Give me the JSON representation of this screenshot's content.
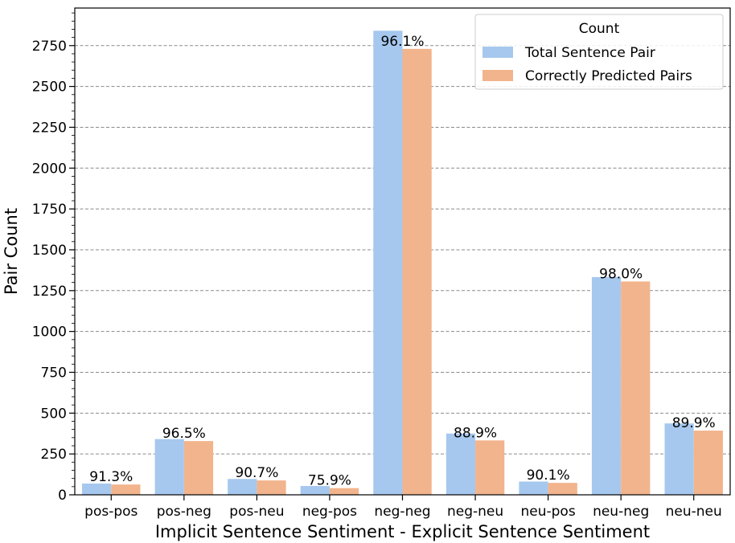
{
  "chart_data": {
    "type": "bar",
    "title": "",
    "xlabel": "Implicit Sentence Sentiment - Explicit Sentence Sentiment",
    "ylabel": "Pair Count",
    "ylim": [
      0,
      2980
    ],
    "yticks": [
      0,
      250,
      500,
      750,
      1000,
      1250,
      1500,
      1750,
      2000,
      2250,
      2500,
      2750
    ],
    "minor_tick_step": 50,
    "grid": true,
    "categories": [
      "pos-pos",
      "pos-neg",
      "pos-neu",
      "neg-pos",
      "neg-neg",
      "neg-neu",
      "neu-pos",
      "neu-neg",
      "neu-neu"
    ],
    "series": [
      {
        "name": "Total Sentence Pair",
        "color": "#a6c8ee",
        "values": [
          69,
          341,
          97,
          54,
          2841,
          375,
          81,
          1333,
          437
        ]
      },
      {
        "name": "Correctly Predicted Pairs",
        "color": "#f2b48c",
        "values": [
          63,
          329,
          88,
          41,
          2730,
          333,
          73,
          1306,
          393
        ]
      }
    ],
    "bar_labels": [
      "91.3%",
      "96.5%",
      "90.7%",
      "75.9%",
      "96.1%",
      "88.9%",
      "90.1%",
      "98.0%",
      "89.9%"
    ],
    "legend": {
      "title": "Count",
      "position": "top-right",
      "entries": [
        "Total Sentence Pair",
        "Correctly Predicted Pairs"
      ]
    }
  }
}
